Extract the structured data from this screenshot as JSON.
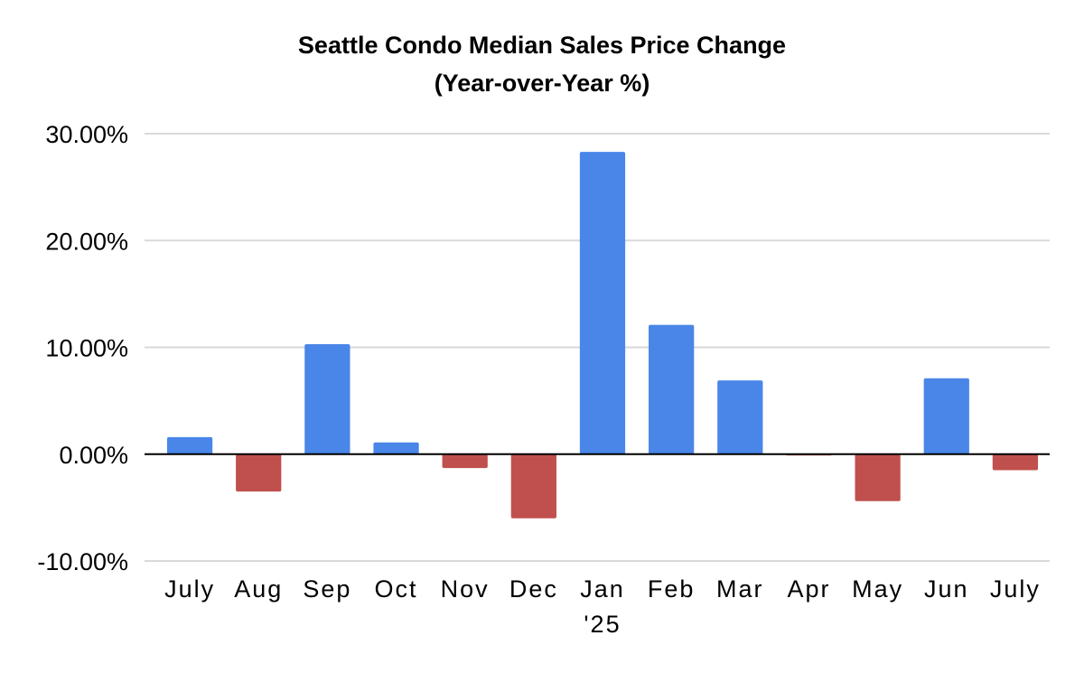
{
  "chart_data": {
    "type": "bar",
    "title_line1": "Seattle Condo Median Sales Price Change",
    "title_line2": "(Year-over-Year %)",
    "xlabel": "",
    "ylabel": "",
    "categories": [
      "July",
      "Aug",
      "Sep",
      "Oct",
      "Nov",
      "Dec",
      "Jan",
      "Feb",
      "Mar",
      "Apr",
      "May",
      "Jun",
      "July"
    ],
    "category_sublabels": [
      "",
      "",
      "",
      "",
      "",
      "",
      "'25",
      "",
      "",
      "",
      "",
      "",
      ""
    ],
    "values": [
      1.6,
      -3.5,
      10.3,
      1.1,
      -1.3,
      -6.0,
      28.3,
      12.1,
      6.9,
      -0.1,
      -4.4,
      7.1,
      -1.5
    ],
    "ylim": [
      -10,
      30
    ],
    "yticks": [
      30,
      20,
      10,
      0,
      -10
    ],
    "ytick_labels": [
      "30.00%",
      "20.00%",
      "10.00%",
      "0.00%",
      "-10.00%"
    ],
    "grid": true,
    "legend": "none",
    "colors": {
      "positive": "#4a86e8",
      "negative": "#c0504d",
      "grid": "#d9d9d9",
      "zero_line": "#000000"
    }
  }
}
